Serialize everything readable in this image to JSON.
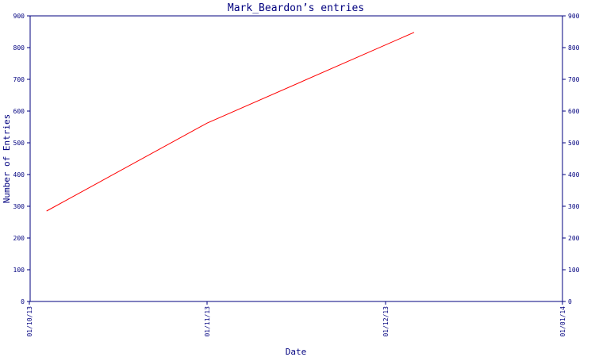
{
  "chart_data": {
    "type": "line",
    "title": "Mark_Beardon’s entries",
    "xlabel": "Date",
    "ylabel": "Number of Entries",
    "x_ticks": [
      "01/10/13",
      "01/11/13",
      "01/12/13",
      "01/01/14"
    ],
    "ylim": [
      0,
      900
    ],
    "y_ticks": [
      0,
      100,
      200,
      300,
      400,
      500,
      600,
      700,
      800,
      900
    ],
    "y_ticks_right": true,
    "grid": false,
    "colors": {
      "axis": "#00007f",
      "series": "#ff0000"
    },
    "series": [
      {
        "x": [
          "2013-10-04",
          "2013-11-01",
          "2013-12-06"
        ],
        "y": [
          285,
          562,
          848
        ]
      }
    ]
  }
}
